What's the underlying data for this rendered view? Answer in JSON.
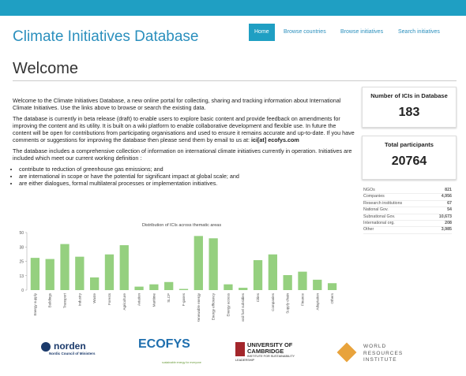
{
  "header": {
    "title": "Climate Initiatives Database",
    "nav": [
      "Home",
      "Browse countries",
      "Browse initiatives",
      "Search initiatives"
    ]
  },
  "heading": "Welcome",
  "intro": {
    "p1": "Welcome to the Climate Initiatives Database, a new online portal for collecting, sharing and tracking information about International Climate Initiatives. Use the links above to browse or search the existing data.",
    "p2": "The database is currently in beta release (draft) to enable users to explore basic content and provide feedback on amendments for improving the content and its utility. It is built on a wiki platform to enable collaborative development and flexible use. In future the content will be open for contributions from participating organisations and used to ensure it remains accurate and up-to-date. If you have comments or suggestions for improving the database then please send them by email to us at:",
    "email": "ici[at] ecofys.com",
    "p3": "The database includes a comprehensive collection of information on international climate initiatives currently in operation. Initiatives are included which meet our current working definition :",
    "bullets": [
      "contribute to reduction of greenhouse gas emissions; and",
      "are international in scope or have the potential for significant impact at global scale; and",
      "are either dialogues, formal multilateral processes or implementation initiatives."
    ]
  },
  "sidebar": {
    "stats": [
      {
        "label": "Number of ICIs in Database",
        "value": 183
      },
      {
        "label": "Total participants",
        "value": 20764
      }
    ],
    "breakdown": [
      [
        "NGOs",
        821
      ],
      [
        "Companies",
        "4,956"
      ],
      [
        "Research institutions",
        67
      ],
      [
        "National Gov.",
        54
      ],
      [
        "Subnational Gov.",
        "10,673"
      ],
      [
        "International org.",
        208
      ],
      [
        "Other",
        "3,985"
      ]
    ]
  },
  "chart_data": {
    "type": "bar",
    "title": "Distribution of ICIs across thematic areas",
    "categories": [
      "Energy supply",
      "Buildings",
      "Transport",
      "Industry",
      "Waste",
      "Forests",
      "Agriculture",
      "Aviation",
      "Maritime",
      "SLCP",
      "F-gases",
      "Renewable energy",
      "Energy efficiency",
      "Energy access",
      "Fossil fuel subsidies",
      "Cities",
      "Companies",
      "Supply chain",
      "Finance",
      "Adaptation",
      "Others"
    ],
    "values": [
      28,
      27,
      40,
      29,
      11,
      31,
      39,
      3,
      5,
      7,
      1,
      47,
      45,
      5,
      2,
      26,
      31,
      13,
      16,
      9,
      6
    ],
    "color": "#95d07f",
    "ylim": [
      0,
      50
    ],
    "yticks": [
      0,
      {
        "value": 12.5,
        "label": "13"
      },
      25,
      {
        "value": 37.5,
        "label": "38"
      },
      50
    ]
  },
  "logos": [
    {
      "name": "norden",
      "sub": "Nordic Council of Ministers"
    },
    {
      "name": "ECOFYS",
      "sub": "sustainable energy for everyone"
    },
    {
      "name": "UNIVERSITY OF CAMBRIDGE",
      "sub": "INSTITUTE FOR SUSTAINABILITY LEADERSHIP"
    },
    {
      "name": "WORLD RESOURCES INSTITUTE"
    }
  ]
}
